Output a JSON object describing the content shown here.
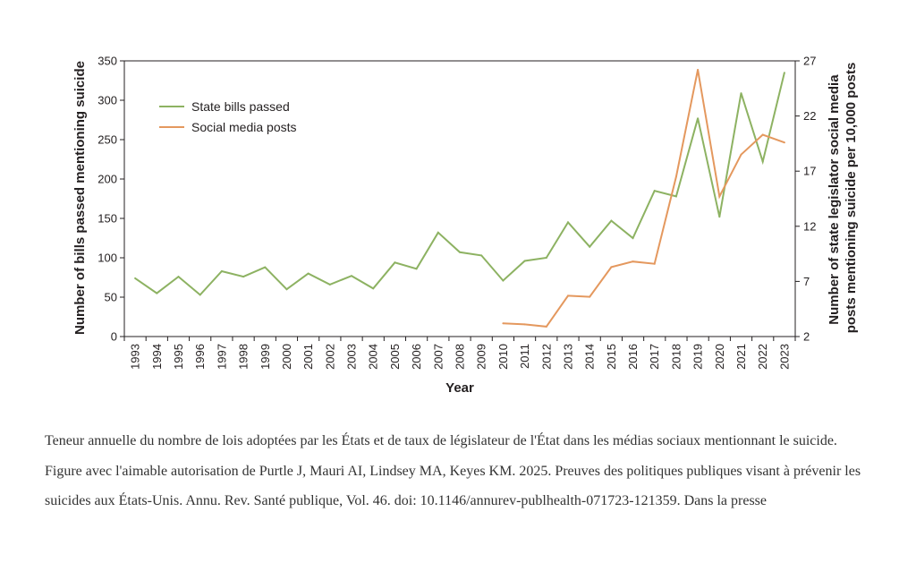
{
  "chart_data": {
    "type": "line",
    "xlabel": "Year",
    "ylabel_left": "Number of bills passed mentioning suicide",
    "ylabel_right": [
      "Number of state legislator social media",
      "posts mentioning suicide per 10,000 posts"
    ],
    "x": [
      1993,
      1994,
      1995,
      1996,
      1997,
      1998,
      1999,
      2000,
      2001,
      2002,
      2003,
      2004,
      2005,
      2006,
      2007,
      2008,
      2009,
      2010,
      2011,
      2012,
      2013,
      2014,
      2015,
      2016,
      2017,
      2018,
      2019,
      2020,
      2021,
      2022,
      2023
    ],
    "ylim_left": [
      0,
      350
    ],
    "yticks_left": [
      0,
      50,
      100,
      150,
      200,
      250,
      300,
      350
    ],
    "ylim_right": [
      2,
      27
    ],
    "yticks_right": [
      2,
      7,
      12,
      17,
      22,
      27
    ],
    "legend_position": "top-left",
    "grid": false,
    "series": [
      {
        "name": "State bills passed",
        "axis": "left",
        "color": "#8db262",
        "x": [
          1993,
          1994,
          1995,
          1996,
          1997,
          1998,
          1999,
          2000,
          2001,
          2002,
          2003,
          2004,
          2005,
          2006,
          2007,
          2008,
          2009,
          2010,
          2011,
          2012,
          2013,
          2014,
          2015,
          2016,
          2017,
          2018,
          2019,
          2020,
          2021,
          2022,
          2023
        ],
        "values": [
          74,
          55,
          76,
          53,
          83,
          76,
          88,
          60,
          80,
          66,
          77,
          61,
          94,
          86,
          132,
          107,
          103,
          71,
          96,
          100,
          145,
          114,
          147,
          125,
          185,
          178,
          277,
          152,
          309,
          222,
          335
        ]
      },
      {
        "name": "Social media posts",
        "axis": "right",
        "color": "#e4985e",
        "x": [
          2010,
          2011,
          2012,
          2013,
          2014,
          2015,
          2016,
          2017,
          2018,
          2019,
          2020,
          2021,
          2022,
          2023
        ],
        "values": [
          3.2,
          3.1,
          2.9,
          5.7,
          5.6,
          8.3,
          8.8,
          8.6,
          16.5,
          26.2,
          14.7,
          18.5,
          20.3,
          19.6
        ]
      }
    ]
  },
  "caption": "Teneur annuelle du nombre de lois adoptées par les États et de taux de législateur de l'État dans les médias sociaux mentionnant le suicide. Figure avec l'aimable autorisation de Purtle J, Mauri AI, Lindsey MA, Keyes KM. 2025. Preuves des politiques publiques visant à prévenir les suicides aux États-Unis. Annu. Rev. Santé publique, Vol. 46. doi: 10.1146/annurev-publhealth-071723-121359. Dans la presse"
}
